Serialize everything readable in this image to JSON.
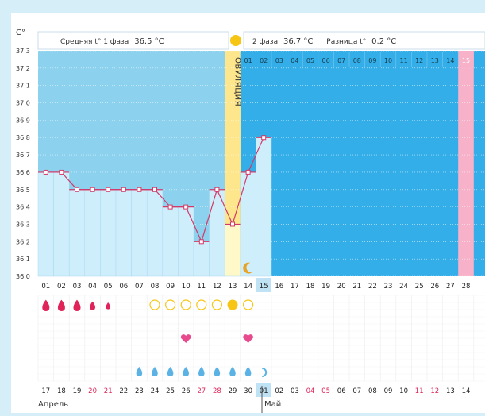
{
  "header": {
    "unit": "C°",
    "phase1_label": "Средняя t° 1 фаза",
    "phase1_value": "36.5 °C",
    "phase2_label": "2 фаза",
    "phase2_value": "36.7 °C",
    "diff_label": "Разница t°",
    "diff_value": "0.2 °C"
  },
  "colors": {
    "page_bg": "#d6eef8",
    "phase1_bg": "#8cd2ee",
    "phase2_bg": "#33aee8",
    "ovulation": "#fde68c",
    "period_pink": "#f7b2c9",
    "bar_fill": "#cfeefc",
    "line": "#d13a68",
    "drop_red": "#e0245a",
    "drop_blue": "#5ab3e4",
    "circle_yellow": "#f7c614",
    "heart": "#e84a8e",
    "weekend_red": "#e0245a"
  },
  "labels": {
    "ovulation": "ОВУЛЯЦИЯ",
    "month1": "Апрель",
    "month2": "Май"
  },
  "chart_data": {
    "type": "line",
    "title": "Средняя t° 1 фаза 36.5 °C | 2 фаза 36.7 °C | Разница t° 0.2 °C",
    "ylabel": "C°",
    "ylim": [
      36.0,
      37.3
    ],
    "yticks": [
      "36.0",
      "36.1",
      "36.2",
      "36.3",
      "36.4",
      "36.5",
      "36.6",
      "36.7",
      "36.8",
      "36.9",
      "37.0",
      "37.1",
      "37.2",
      "37.3"
    ],
    "cycle_days": [
      "01",
      "02",
      "03",
      "04",
      "05",
      "06",
      "07",
      "08",
      "09",
      "10",
      "11",
      "12",
      "13",
      "14",
      "15",
      "16",
      "17",
      "18",
      "19",
      "20",
      "21",
      "22",
      "23",
      "24",
      "25",
      "26",
      "27",
      "28"
    ],
    "current_day": "15",
    "ovulation_day": "13",
    "phase2_days": [
      "01",
      "02",
      "03",
      "04",
      "05",
      "06",
      "07",
      "08",
      "09",
      "10",
      "11",
      "12",
      "13",
      "14",
      "15"
    ],
    "highlight_phase2_day": "15",
    "temperatures": [
      36.6,
      36.6,
      36.5,
      36.5,
      36.5,
      36.5,
      36.5,
      36.5,
      36.4,
      36.4,
      36.2,
      36.5,
      36.3,
      36.6,
      36.8
    ],
    "calendar_dates": [
      "17",
      "18",
      "19",
      "20",
      "21",
      "22",
      "23",
      "24",
      "25",
      "26",
      "27",
      "28",
      "29",
      "30",
      "01",
      "02",
      "03",
      "04",
      "05",
      "06",
      "07",
      "08",
      "09",
      "10",
      "11",
      "12",
      "13",
      "14"
    ],
    "weekend_dates": [
      "20",
      "21",
      "27",
      "28",
      "04",
      "05",
      "11",
      "12"
    ],
    "today_date": "01",
    "bleeding_days": [
      "01",
      "02",
      "03",
      "04",
      "05"
    ],
    "fertility_days": [
      "08",
      "09",
      "10",
      "11",
      "12",
      "13",
      "14"
    ],
    "fertility_peak_day": "13",
    "heart_days": [
      "10",
      "14"
    ],
    "mucus_days": [
      "07",
      "08",
      "09",
      "10",
      "11",
      "12",
      "13",
      "14",
      "15"
    ],
    "moon_day": "14"
  }
}
